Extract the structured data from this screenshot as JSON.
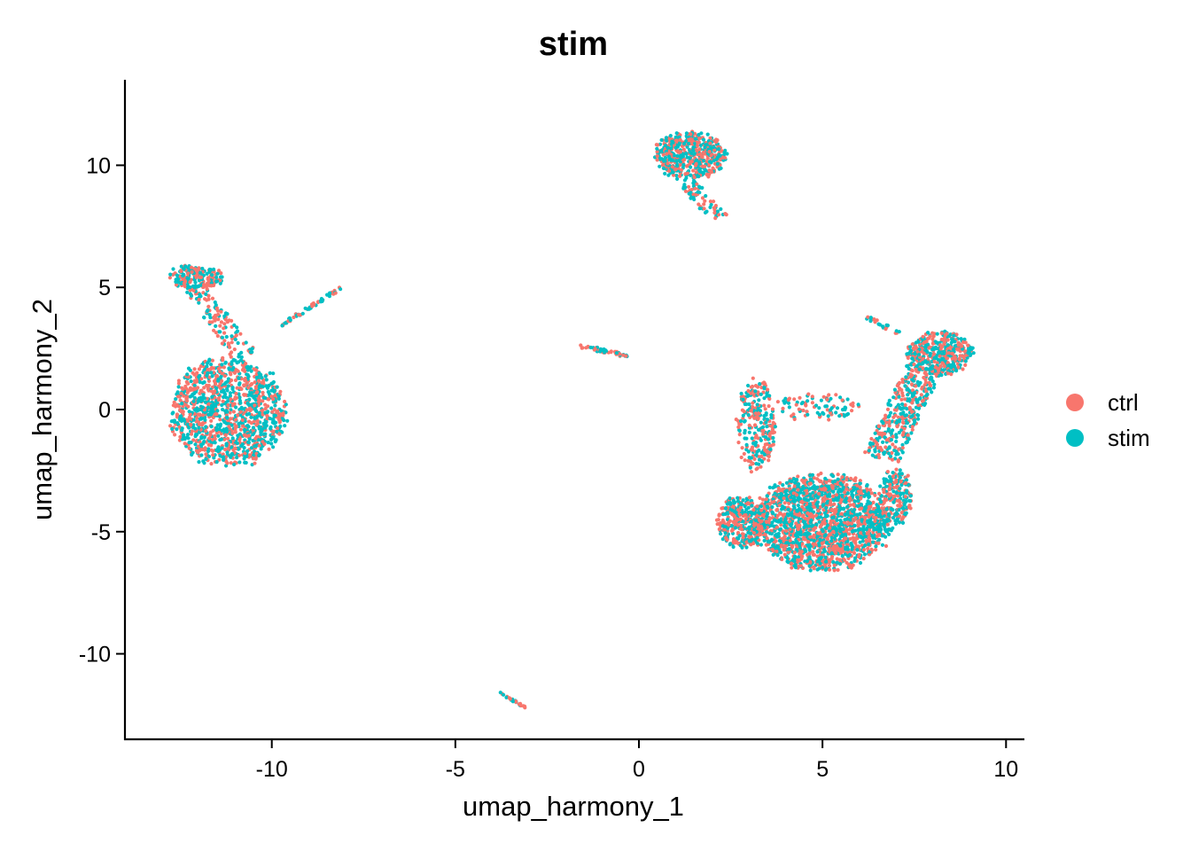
{
  "chart_data": {
    "type": "scatter",
    "title": "stim",
    "xlabel": "umap_harmony_1",
    "ylabel": "umap_harmony_2",
    "xlim": [
      -14,
      10.5
    ],
    "ylim": [
      -13.5,
      13.5
    ],
    "x_ticks": [
      -10,
      -5,
      0,
      5,
      10
    ],
    "x_tick_labels": [
      "-10",
      "-5",
      "0",
      "5",
      "10"
    ],
    "y_ticks": [
      -10,
      -5,
      0,
      5,
      10
    ],
    "y_tick_labels": [
      "-10",
      "-5",
      "0",
      "5",
      "10"
    ],
    "grid": false,
    "legend_position": "right",
    "series": [
      {
        "name": "ctrl",
        "color": "#F8766D"
      },
      {
        "name": "stim",
        "color": "#00BFC4"
      }
    ],
    "clusters": [
      {
        "name": "left-blob",
        "cx": -11.2,
        "cy": -0.1,
        "rx": 1.6,
        "ry": 2.3,
        "n": 1200,
        "shape": "ellipse"
      },
      {
        "name": "left-arm",
        "x0": -12.6,
        "y0": 5.8,
        "x1": -10.7,
        "y1": 2.2,
        "width": 0.35,
        "n": 160,
        "shape": "segment"
      },
      {
        "name": "left-head",
        "cx": -12.0,
        "cy": 5.4,
        "rx": 0.75,
        "ry": 0.45,
        "n": 150,
        "shape": "ellipse"
      },
      {
        "name": "left-streak",
        "x0": -9.8,
        "y0": 3.4,
        "x1": -8.1,
        "y1": 5.0,
        "width": 0.06,
        "n": 55,
        "shape": "segment"
      },
      {
        "name": "mid-streak",
        "x0": -1.6,
        "y0": 2.6,
        "x1": -0.3,
        "y1": 2.2,
        "width": 0.08,
        "n": 55,
        "shape": "segment"
      },
      {
        "name": "bottom-streak",
        "x0": -3.8,
        "y0": -11.6,
        "x1": -3.1,
        "y1": -12.2,
        "width": 0.04,
        "n": 25,
        "shape": "segment"
      },
      {
        "name": "top-cluster",
        "cx": 1.4,
        "cy": 10.4,
        "rx": 1.0,
        "ry": 1.0,
        "n": 520,
        "shape": "ellipse"
      },
      {
        "name": "top-tail",
        "x0": 1.3,
        "y0": 9.3,
        "x1": 2.2,
        "y1": 7.8,
        "width": 0.25,
        "n": 70,
        "shape": "segment"
      },
      {
        "name": "right-main",
        "cx": 5.0,
        "cy": -4.6,
        "rx": 1.9,
        "ry": 2.0,
        "n": 1900,
        "shape": "ellipse"
      },
      {
        "name": "right-left-lobe",
        "cx": 2.8,
        "cy": -4.6,
        "rx": 0.7,
        "ry": 1.1,
        "n": 380,
        "shape": "ellipse"
      },
      {
        "name": "right-right-lobe",
        "cx": 7.0,
        "cy": -3.6,
        "rx": 0.45,
        "ry": 1.2,
        "n": 200,
        "shape": "ellipse"
      },
      {
        "name": "right-upper-left",
        "cx": 3.2,
        "cy": -0.6,
        "rx": 0.55,
        "ry": 2.0,
        "n": 260,
        "shape": "ellipse"
      },
      {
        "name": "right-upper-arc",
        "cx": 4.8,
        "cy": 0.1,
        "rx": 1.3,
        "ry": 0.55,
        "n": 90,
        "shape": "ellipse"
      },
      {
        "name": "right-arm",
        "x0": 6.6,
        "y0": -2.0,
        "x1": 7.8,
        "y1": 1.8,
        "width": 0.5,
        "n": 380,
        "shape": "segment"
      },
      {
        "name": "right-top-right",
        "cx": 8.2,
        "cy": 2.3,
        "rx": 0.9,
        "ry": 0.9,
        "n": 420,
        "shape": "ellipse"
      },
      {
        "name": "right-small-streak",
        "x0": 6.2,
        "y0": 3.8,
        "x1": 7.1,
        "y1": 3.1,
        "width": 0.08,
        "n": 22,
        "shape": "segment"
      }
    ]
  }
}
